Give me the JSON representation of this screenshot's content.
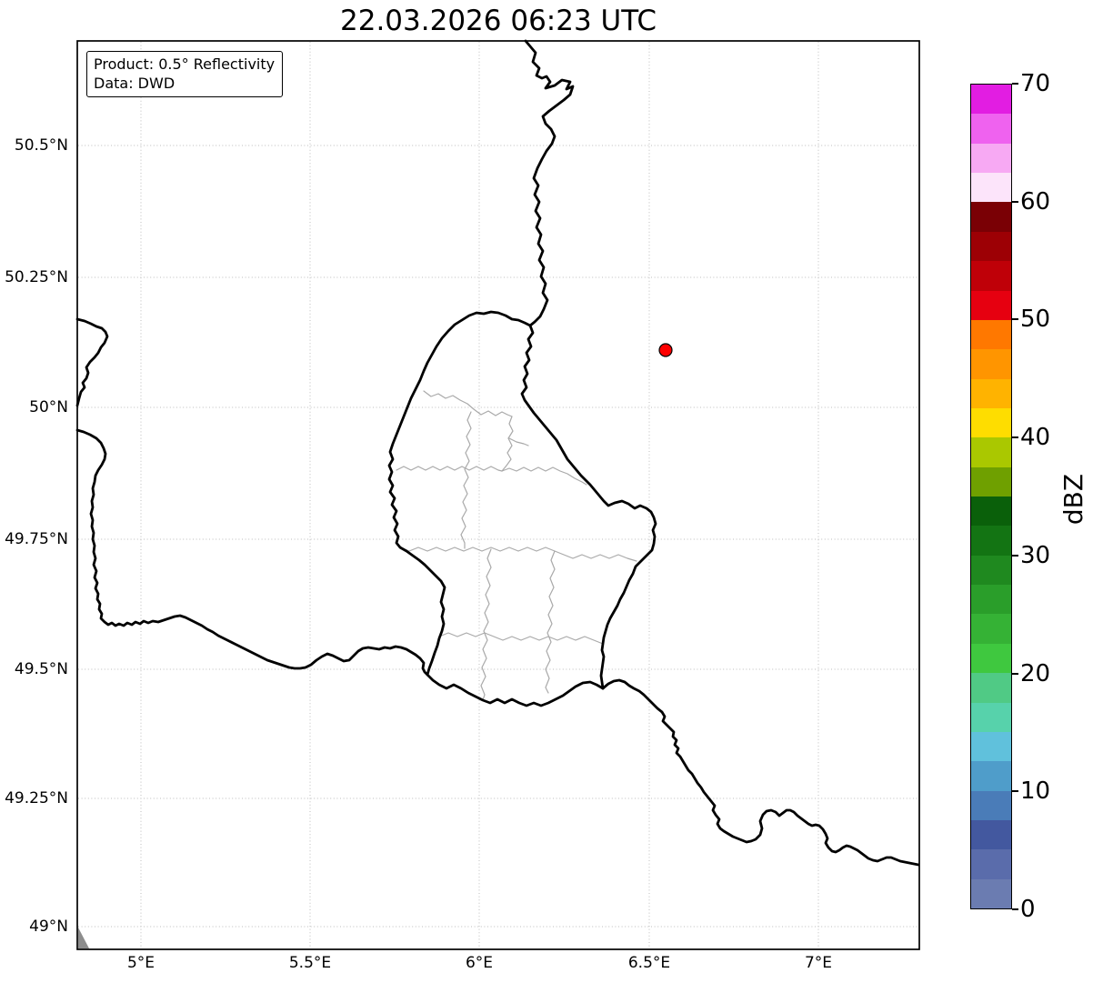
{
  "title": "22.03.2026 06:23 UTC",
  "info_box": {
    "product_line": "Product: 0.5° Reflectivity",
    "data_line": "Data: DWD"
  },
  "axes": {
    "lat_labels": [
      "50.5°N",
      "50.25°N",
      "50°N",
      "49.75°N",
      "49.5°N",
      "49.25°N",
      "49°N"
    ],
    "lon_labels": [
      "5°E",
      "5.5°E",
      "6°E",
      "6.5°E",
      "7°E"
    ]
  },
  "colorbar": {
    "label": "dBZ",
    "tick_labels": [
      "70",
      "60",
      "50",
      "40",
      "30",
      "20",
      "10",
      "0"
    ],
    "range_dbz": [
      0,
      70
    ],
    "colors_top_to_bottom": [
      "#e21de2",
      "#ef62ef",
      "#f7a9f3",
      "#fce4fa",
      "#7a0005",
      "#9d0005",
      "#bf0008",
      "#e60010",
      "#ff7800",
      "#ff9500",
      "#ffb300",
      "#fedd00",
      "#aac800",
      "#6fa000",
      "#0a600a",
      "#137413",
      "#1f891f",
      "#2a9e2a",
      "#35b235",
      "#3fc83f",
      "#50ca85",
      "#57d2ab",
      "#60c1dc",
      "#4f9dca",
      "#4a7cb8",
      "#43589f",
      "#5a6cab",
      "#6b7cb1"
    ]
  },
  "marker": {
    "fill": "#ff0000",
    "approx_lon_deg_e": 6.55,
    "approx_lat_deg_n": 50.11
  }
}
